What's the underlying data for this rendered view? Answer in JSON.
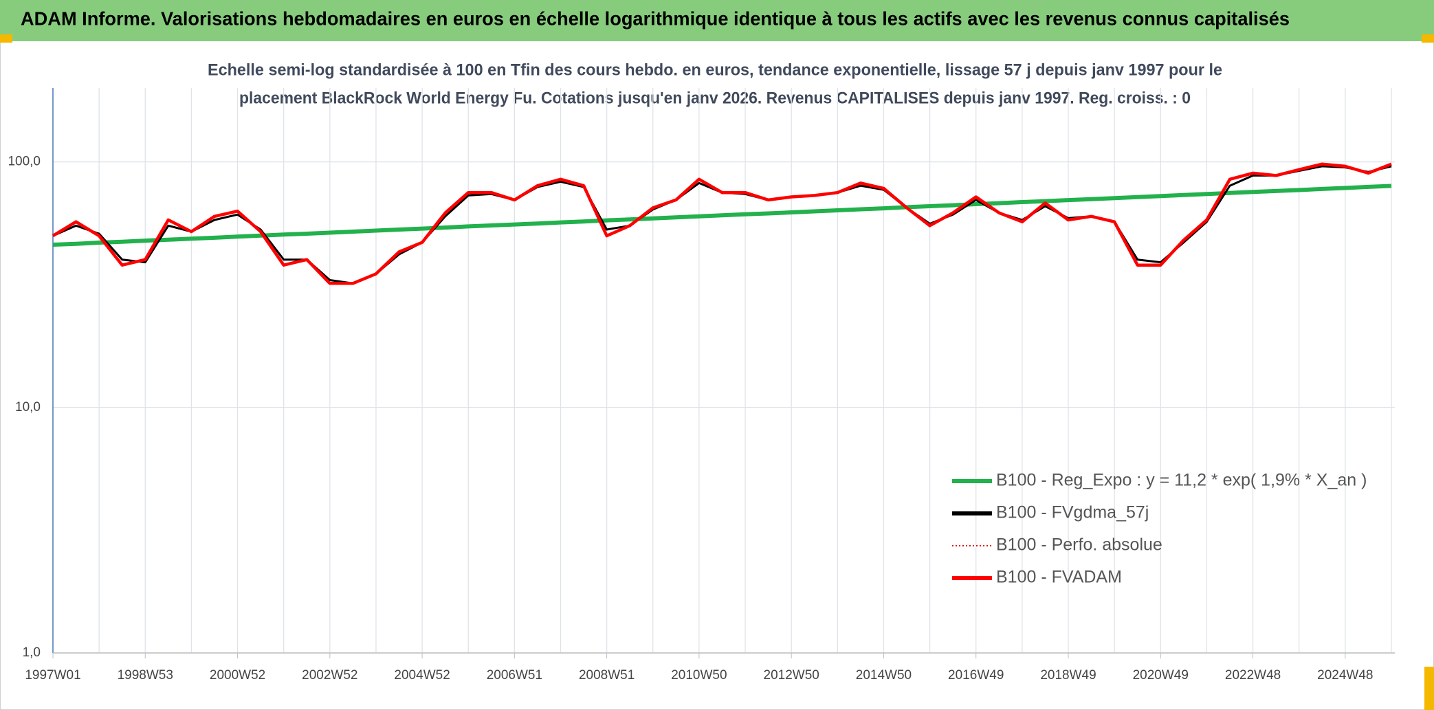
{
  "chart_data": {
    "type": "line",
    "title": "ADAM Informe. Valorisations hebdomadaires en euros en échelle logarithmique identique à tous les actifs avec les revenus connus capitalisés",
    "subtitle": [
      "Echelle semi-log standardisée à 100 en Tfin des cours hebdo. en euros, tendance exponentielle, lissage 57 j depuis janv 1997 pour le",
      "placement BlackRock World Energy Fu. Cotations jusqu'en janv 2026. Revenus CAPITALISES depuis janv 1997. Reg. croiss. : 0"
    ],
    "categories": [
      "1997W01",
      null,
      null,
      null,
      "1998W53",
      null,
      null,
      null,
      "2000W52",
      null,
      null,
      null,
      "2002W52",
      null,
      null,
      null,
      "2004W52",
      null,
      null,
      null,
      "2006W51",
      null,
      null,
      null,
      "2008W51",
      null,
      null,
      null,
      "2010W50",
      null,
      null,
      null,
      "2012W50",
      null,
      null,
      null,
      "2014W50",
      null,
      null,
      null,
      "2016W49",
      null,
      null,
      null,
      "2018W49",
      null,
      null,
      null,
      "2020W49",
      null,
      null,
      null,
      "2022W48",
      null,
      null,
      null,
      "2024W48",
      null,
      null
    ],
    "log_scale": true,
    "ylim": [
      1,
      200
    ],
    "yticks": [
      {
        "value": 1,
        "label": "1,0"
      },
      {
        "value": 10,
        "label": "10,0"
      },
      {
        "value": 100,
        "label": "100,0"
      }
    ],
    "grid": true,
    "legend": "lower right",
    "series": [
      {
        "name": "B100 - Reg_Expo : y = 11,2 * exp( 1,9% *  X_an )",
        "color": "#22b14c",
        "style": "solid",
        "values": [
          46.0,
          46.4,
          46.9,
          47.3,
          47.8,
          48.2,
          48.7,
          49.1,
          49.6,
          50.1,
          50.6,
          51.0,
          51.5,
          52.0,
          52.5,
          53.0,
          53.5,
          54.0,
          54.6,
          55.1,
          55.6,
          56.1,
          56.7,
          57.2,
          57.8,
          58.3,
          58.9,
          59.4,
          60.0,
          60.6,
          61.2,
          61.7,
          62.3,
          62.9,
          63.5,
          64.1,
          64.7,
          65.4,
          66.0,
          66.6,
          67.3,
          67.9,
          68.6,
          69.2,
          69.9,
          70.5,
          71.2,
          71.9,
          72.6,
          73.3,
          74.0,
          74.7,
          75.4,
          76.1,
          76.8,
          77.6,
          78.3,
          79.1,
          79.8
        ]
      },
      {
        "name": "B100 - FVgdma_57j",
        "color": "#000000",
        "style": "solid",
        "values": [
          50,
          55,
          51,
          40,
          39,
          55,
          52,
          58,
          61,
          53,
          40,
          40,
          33,
          32,
          35,
          42,
          47,
          60,
          73,
          74,
          70,
          79,
          83,
          79,
          53,
          55,
          64,
          70,
          82,
          75,
          74,
          70,
          72,
          73,
          75,
          80,
          77,
          65,
          56,
          61,
          70,
          62,
          58,
          66,
          59,
          60,
          57,
          40,
          39,
          47,
          57,
          80,
          88,
          88,
          92,
          96,
          95,
          91,
          96
        ]
      },
      {
        "name": "B100 - Perfo. absolue",
        "color": "#e00000",
        "style": "dotted",
        "values": [
          50,
          57,
          50,
          38,
          40,
          58,
          52,
          60,
          63,
          52,
          38,
          40,
          32,
          32,
          35,
          43,
          47,
          62,
          75,
          75,
          70,
          80,
          85,
          80,
          50,
          55,
          65,
          70,
          85,
          75,
          75,
          70,
          72,
          73,
          75,
          82,
          78,
          65,
          55,
          62,
          72,
          62,
          57,
          68,
          58,
          60,
          57,
          38,
          38,
          48,
          58,
          85,
          90,
          88,
          93,
          98,
          96,
          90,
          98
        ]
      },
      {
        "name": "B100 - FVADAM",
        "color": "#ff0000",
        "style": "solid",
        "values": [
          50,
          57,
          50,
          38,
          40,
          58,
          52,
          60,
          63,
          52,
          38,
          40,
          32,
          32,
          35,
          43,
          47,
          62,
          75,
          75,
          70,
          80,
          85,
          80,
          50,
          55,
          65,
          70,
          85,
          75,
          75,
          70,
          72,
          73,
          75,
          82,
          78,
          65,
          55,
          62,
          72,
          62,
          57,
          68,
          58,
          60,
          57,
          38,
          38,
          48,
          58,
          85,
          90,
          88,
          93,
          98,
          96,
          90,
          98
        ]
      }
    ]
  }
}
